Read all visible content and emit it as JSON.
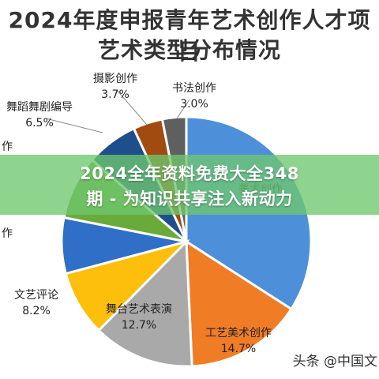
{
  "chart_data": {
    "type": "pie",
    "title_lines": [
      "2024年度申报青年艺术创作人才项目",
      "艺术类型分布情况"
    ],
    "slices": [
      {
        "label": "美术创作",
        "value": 33.0,
        "color": "#4e8fd9",
        "show_value": false,
        "partial_label": "美术创作"
      },
      {
        "label": "工艺美术创作",
        "value": 14.7,
        "color": "#f07c26",
        "show_value": true
      },
      {
        "label": "舞台艺术表演",
        "value": 12.7,
        "color": "#a9a9a9",
        "show_value": true
      },
      {
        "label": "文艺评论",
        "value": 8.2,
        "color": "#fdbf0b",
        "show_value": true
      },
      {
        "label": "",
        "value": 7.0,
        "color": "#2f6fc8",
        "show_value": false,
        "partial_label": "作"
      },
      {
        "label": "",
        "value": 8.0,
        "color": "#6aaa3a",
        "show_value": false,
        "partial_label": "作"
      },
      {
        "label": "舞蹈舞剧编导",
        "value": 6.5,
        "color": "#1f4e8c",
        "show_value": true
      },
      {
        "label": "摄影创作",
        "value": 3.7,
        "color": "#a14b10",
        "show_value": true
      },
      {
        "label": "书法创作",
        "value": 3.0,
        "color": "#5f5f5f",
        "show_value": true
      }
    ]
  },
  "overlay": {
    "line1": "2024全年资料免费大全348",
    "line2": "期 - 为知识共享注入新动力"
  },
  "watermark": "头条 @中国文"
}
